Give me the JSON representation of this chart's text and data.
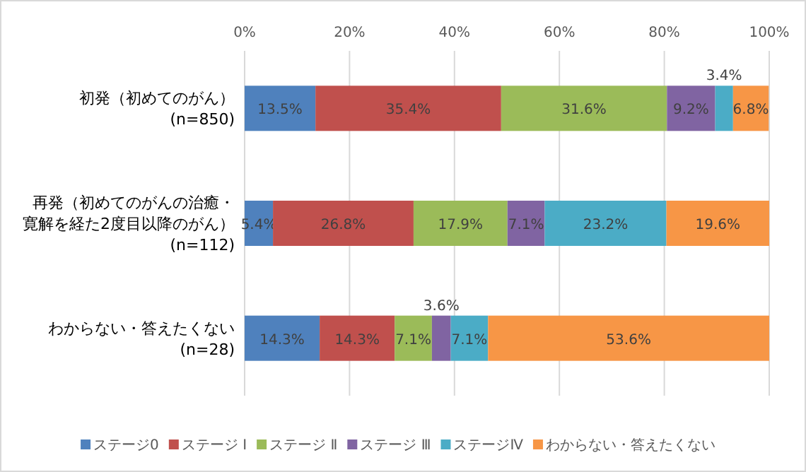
{
  "chart_data": {
    "type": "bar",
    "orientation": "horizontal",
    "stacked": true,
    "grid": "x",
    "legend": "bottom",
    "categories": [
      "初発（初めてのがん）(n=850)",
      "再発（初めてのがんの治癒・寛解を経た2度目以降のがん）(n=112)",
      "わからない・答えたくない(n=28)"
    ],
    "xlim": [
      0,
      100
    ],
    "xticks": [
      {
        "value": 0,
        "label": "0%"
      },
      {
        "value": 20,
        "label": "20%"
      },
      {
        "value": 40,
        "label": "40%"
      },
      {
        "value": 60,
        "label": "60%"
      },
      {
        "value": 80,
        "label": "80%"
      },
      {
        "value": 100,
        "label": "100%"
      }
    ],
    "series": [
      {
        "name": "ステージ0",
        "color": "#4f81bd",
        "values": [
          13.5,
          5.4,
          14.3
        ],
        "value_labels": [
          "13.5%",
          "5.4%",
          "14.3%"
        ]
      },
      {
        "name": "ステージ Ⅰ",
        "color": "#c0504d",
        "values": [
          35.4,
          26.8,
          14.3
        ],
        "value_labels": [
          "35.4%",
          "26.8%",
          "14.3%"
        ]
      },
      {
        "name": "ステージ Ⅱ",
        "color": "#9bbb59",
        "values": [
          31.6,
          17.9,
          7.1
        ],
        "value_labels": [
          "31.6%",
          "17.9%",
          "7.1%"
        ]
      },
      {
        "name": "ステージ Ⅲ",
        "color": "#8064a2",
        "values": [
          9.2,
          7.1,
          3.6
        ],
        "value_labels": [
          "9.2%",
          "7.1%",
          "3.6%"
        ]
      },
      {
        "name": "ステージⅣ",
        "color": "#4bacc6",
        "values": [
          3.4,
          23.2,
          7.1
        ],
        "value_labels": [
          "3.4%",
          "23.2%",
          "7.1%"
        ]
      },
      {
        "name": "わからない・答えたくない",
        "color": "#f79646",
        "values": [
          6.8,
          19.6,
          53.6
        ],
        "value_labels": [
          "6.8%",
          "19.6%",
          "53.6%"
        ]
      }
    ]
  }
}
